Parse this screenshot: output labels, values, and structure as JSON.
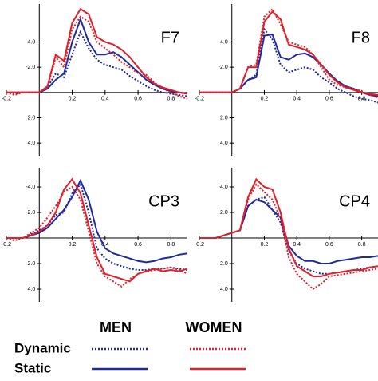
{
  "chart_data": [
    {
      "type": "line",
      "title": "F7",
      "x": [
        -0.2,
        -0.15,
        -0.1,
        -0.05,
        0,
        0.05,
        0.1,
        0.15,
        0.2,
        0.25,
        0.3,
        0.35,
        0.4,
        0.45,
        0.5,
        0.55,
        0.6,
        0.65,
        0.7,
        0.75,
        0.8,
        0.85,
        0.9
      ],
      "series": [
        {
          "color": "#1f2a9c",
          "dash": true,
          "values": [
            0,
            0.1,
            0,
            0,
            0,
            -0.4,
            -1.5,
            -1.2,
            -3,
            -4.8,
            -3.5,
            -2.6,
            -2.2,
            -2,
            -1.8,
            -1.3,
            -0.9,
            -0.5,
            -0.2,
            0,
            0.1,
            0.2,
            0.3
          ]
        },
        {
          "color": "#1f2a9c",
          "dash": false,
          "values": [
            0,
            0,
            0,
            0,
            0,
            -0.3,
            -1,
            -1.5,
            -4,
            -5.8,
            -4,
            -3,
            -3,
            -3.2,
            -2.8,
            -2.2,
            -1.6,
            -1,
            -0.6,
            -0.3,
            -0.1,
            0,
            0.1
          ]
        },
        {
          "color": "#e0202a",
          "dash": true,
          "values": [
            0,
            0.2,
            0,
            0,
            0,
            -0.4,
            -2.8,
            -2,
            -5,
            -6,
            -5.6,
            -4,
            -3.5,
            -3,
            -2.4,
            -2,
            -1.5,
            -1.4,
            -0.8,
            -0.3,
            0,
            0.3,
            0.5
          ]
        },
        {
          "color": "#e0202a",
          "dash": false,
          "values": [
            0,
            0,
            0,
            0,
            0,
            -0.5,
            -3,
            -2.5,
            -5.5,
            -6.6,
            -6.2,
            -4.4,
            -4,
            -3.8,
            -3.4,
            -2.8,
            -2,
            -1.2,
            -0.7,
            -0.4,
            -0.2,
            0,
            0.1
          ]
        }
      ],
      "xlim": [
        -0.2,
        0.9
      ],
      "ylim": [
        -7,
        5
      ],
      "xticks": [
        -0.2,
        0.2,
        0.4,
        0.6,
        0.8
      ],
      "yticks": [
        {
          "value": -4,
          "label": "-4.0"
        },
        {
          "value": -2,
          "label": "-2.0"
        },
        {
          "value": 2,
          "label": "2.0"
        },
        {
          "value": 4,
          "label": "4.0"
        }
      ]
    },
    {
      "type": "line",
      "title": "F8",
      "x": [
        -0.2,
        -0.15,
        -0.1,
        -0.05,
        0,
        0.05,
        0.1,
        0.15,
        0.2,
        0.25,
        0.3,
        0.35,
        0.4,
        0.45,
        0.5,
        0.55,
        0.6,
        0.65,
        0.7,
        0.75,
        0.8,
        0.85,
        0.9
      ],
      "series": [
        {
          "color": "#1f2a9c",
          "dash": true,
          "values": [
            0,
            0,
            0,
            0,
            0,
            -0.3,
            -1,
            -1.4,
            -5,
            -4.2,
            -2.2,
            -1.6,
            -1.8,
            -2,
            -1.8,
            -1.2,
            -0.8,
            -0.3,
            0,
            0.3,
            0.5,
            0.6,
            0.8
          ]
        },
        {
          "color": "#1f2a9c",
          "dash": false,
          "values": [
            0,
            0,
            0,
            0,
            0,
            -0.3,
            -1,
            -1.2,
            -4.5,
            -4.6,
            -2.8,
            -2.6,
            -3,
            -3.1,
            -2.8,
            -2.2,
            -1.5,
            -0.9,
            -0.5,
            -0.3,
            0,
            0.2,
            0.3
          ]
        },
        {
          "color": "#e0202a",
          "dash": true,
          "values": [
            0,
            0,
            0,
            0,
            0,
            -0.3,
            -2,
            -2.2,
            -6,
            -6.6,
            -5.4,
            -4,
            -3.8,
            -3.6,
            -3,
            -2,
            -1,
            -0.6,
            -0.4,
            -0.3,
            -0.1,
            0.2,
            0.4
          ]
        },
        {
          "color": "#e0202a",
          "dash": false,
          "values": [
            0,
            0,
            0,
            0,
            0,
            -0.3,
            -2,
            -2,
            -5.6,
            -6.4,
            -5.8,
            -3.8,
            -3.6,
            -3.4,
            -3,
            -2.2,
            -1.4,
            -0.8,
            -0.4,
            -0.2,
            0,
            0.1,
            0.2
          ]
        }
      ],
      "xlim": [
        -0.2,
        0.9
      ],
      "ylim": [
        -7,
        5
      ],
      "xticks": [
        -0.2,
        0.2,
        0.4,
        0.6,
        0.8
      ],
      "yticks": [
        {
          "value": -4,
          "label": "-4.0"
        },
        {
          "value": -2,
          "label": "-2.0"
        },
        {
          "value": 2,
          "label": "2.0"
        },
        {
          "value": 4,
          "label": "4.0"
        }
      ]
    },
    {
      "type": "line",
      "title": "CP3",
      "x": [
        -0.2,
        -0.15,
        -0.1,
        -0.05,
        0,
        0.05,
        0.1,
        0.15,
        0.2,
        0.25,
        0.3,
        0.35,
        0.4,
        0.45,
        0.5,
        0.55,
        0.6,
        0.65,
        0.7,
        0.75,
        0.8,
        0.85,
        0.9
      ],
      "series": [
        {
          "color": "#1f2a9c",
          "dash": true,
          "values": [
            0,
            0,
            0,
            -0.3,
            -0.6,
            -1,
            -1.8,
            -2,
            -3.5,
            -4.2,
            -2,
            0.8,
            1.6,
            2,
            2.2,
            2.4,
            2.5,
            2.5,
            2.4,
            2.4,
            2.3,
            2.4,
            2.5
          ]
        },
        {
          "color": "#1f2a9c",
          "dash": false,
          "values": [
            0,
            0,
            0,
            -0.2,
            -0.4,
            -0.8,
            -1.5,
            -2.2,
            -3.2,
            -4.5,
            -3,
            -0.5,
            0.8,
            1.2,
            1.4,
            1.6,
            1.8,
            1.9,
            1.8,
            1.6,
            1.5,
            1.3,
            1.2
          ]
        },
        {
          "color": "#e0202a",
          "dash": true,
          "values": [
            0,
            0.2,
            0,
            -0.4,
            -0.8,
            -1.6,
            -2.5,
            -3.6,
            -4,
            -3,
            -0.5,
            2,
            3,
            3.4,
            3.8,
            3.2,
            2.8,
            2.6,
            2.5,
            2.4,
            2.3,
            2.5,
            2.8
          ]
        },
        {
          "color": "#e0202a",
          "dash": false,
          "values": [
            0,
            0,
            0,
            -0.2,
            -0.5,
            -1,
            -2,
            -3.8,
            -4.6,
            -3.5,
            -1,
            1.5,
            2.8,
            3,
            3.2,
            3.4,
            2.8,
            2.6,
            2.4,
            2.6,
            2.5,
            2.6,
            2.4
          ]
        }
      ],
      "xlim": [
        -0.2,
        0.9
      ],
      "ylim": [
        -5.5,
        5
      ],
      "xticks": [
        -0.2,
        0.2,
        0.4,
        0.6,
        0.8
      ],
      "yticks": [
        {
          "value": -4,
          "label": "-4.0"
        },
        {
          "value": -2,
          "label": "-2.0"
        },
        {
          "value": 2,
          "label": "2.0"
        },
        {
          "value": 4,
          "label": "4.0"
        }
      ]
    },
    {
      "type": "line",
      "title": "CP4",
      "x": [
        -0.2,
        -0.15,
        -0.1,
        -0.05,
        0,
        0.05,
        0.1,
        0.15,
        0.2,
        0.25,
        0.3,
        0.35,
        0.4,
        0.45,
        0.5,
        0.55,
        0.6,
        0.65,
        0.7,
        0.75,
        0.8,
        0.85,
        0.9
      ],
      "series": [
        {
          "color": "#1f2a9c",
          "dash": true,
          "values": [
            0,
            0,
            0,
            -0.2,
            -0.4,
            -0.6,
            -2.5,
            -3,
            -3.2,
            -2.2,
            -1.2,
            1,
            2,
            2.4,
            2.6,
            2.8,
            2.8,
            2.7,
            2.6,
            2.5,
            2.4,
            2.3,
            2.2
          ]
        },
        {
          "color": "#1f2a9c",
          "dash": false,
          "values": [
            0,
            0,
            0,
            -0.2,
            -0.4,
            -0.6,
            -2.5,
            -3,
            -2.8,
            -2.2,
            -1.6,
            0.6,
            1.4,
            1.8,
            1.8,
            2,
            2,
            1.8,
            1.7,
            1.6,
            1.5,
            1.5,
            1.4
          ]
        },
        {
          "color": "#e0202a",
          "dash": true,
          "values": [
            0,
            0,
            0,
            -0.2,
            -0.4,
            -0.6,
            -3,
            -4.2,
            -3.6,
            -3,
            -1.5,
            1.5,
            2.8,
            3.4,
            4,
            3.6,
            3,
            2.9,
            2.8,
            2.7,
            2.6,
            2.5,
            2.4
          ]
        },
        {
          "color": "#e0202a",
          "dash": false,
          "values": [
            0,
            0,
            0,
            -0.2,
            -0.4,
            -0.6,
            -3.2,
            -4.6,
            -4,
            -3.8,
            -2,
            0.8,
            2.2,
            2.6,
            3,
            3,
            2.8,
            2.7,
            2.6,
            2.5,
            2.5,
            2.3,
            2.2
          ]
        }
      ],
      "xlim": [
        -0.2,
        0.9
      ],
      "ylim": [
        -5.5,
        5
      ],
      "xticks": [
        -0.2,
        0.2,
        0.4,
        0.6,
        0.8
      ],
      "yticks": [
        {
          "value": -4,
          "label": "-4.0"
        },
        {
          "value": -2,
          "label": "-2.0"
        },
        {
          "value": 2,
          "label": "2.0"
        },
        {
          "value": 4,
          "label": "4.0"
        }
      ]
    }
  ],
  "legend": {
    "columns": [
      "MEN",
      "WOMEN"
    ],
    "rows": [
      "Dynamic",
      "Static"
    ]
  }
}
